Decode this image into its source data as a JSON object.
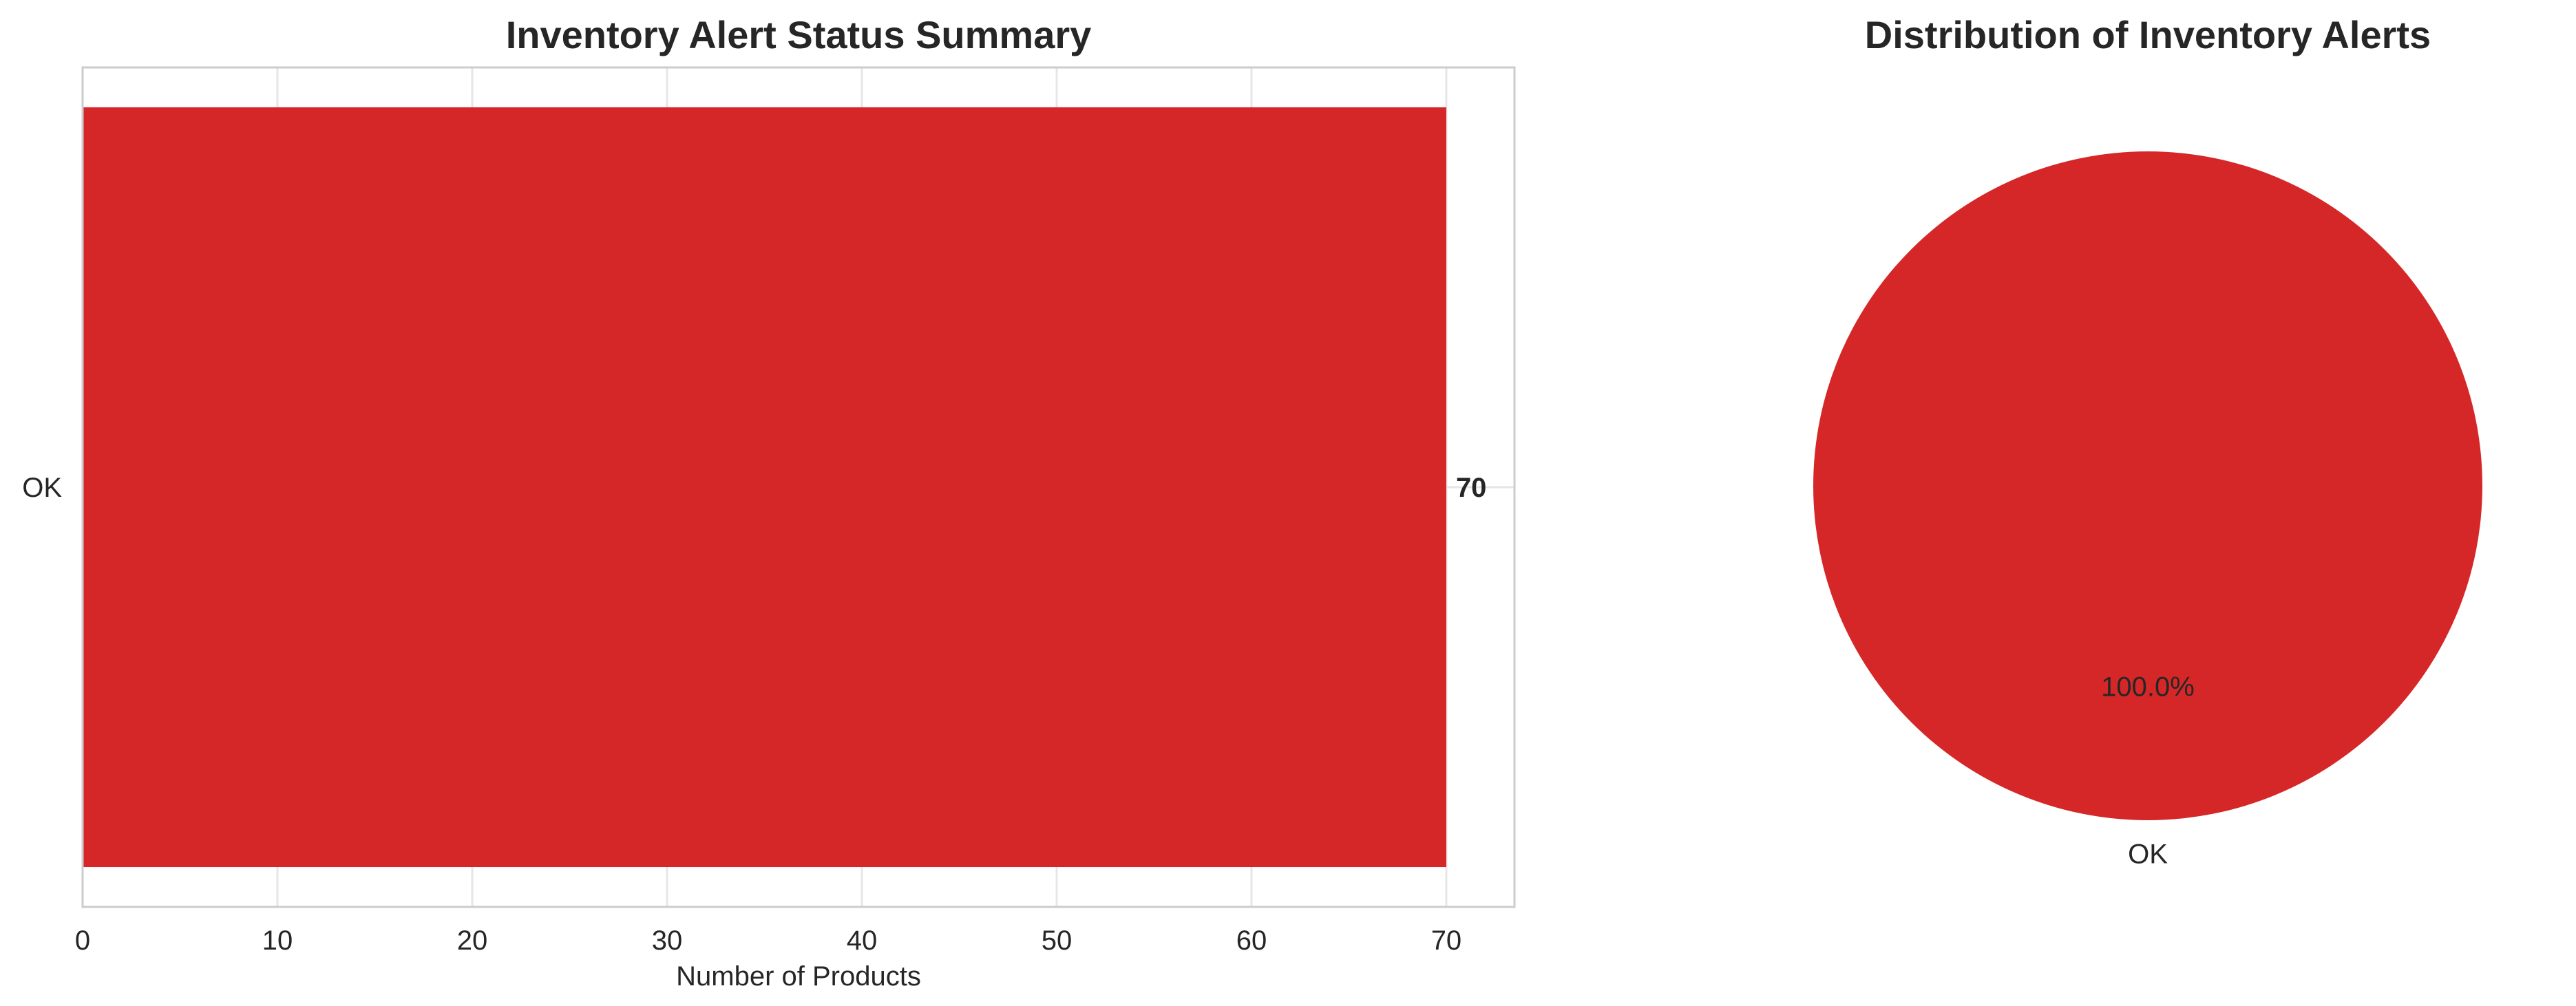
{
  "colors": {
    "bar": "#d62728",
    "grid": "#e6e6e6",
    "axes": "#cccccc",
    "text": "#262626"
  },
  "chart_data": [
    {
      "type": "bar",
      "orientation": "horizontal",
      "title": "Inventory Alert Status Summary",
      "categories": [
        "OK"
      ],
      "values": [
        70
      ],
      "data_labels": [
        "70"
      ],
      "xlabel": "Number of Products",
      "ylabel": "",
      "xlim": [
        0,
        73.5
      ],
      "xticks": [
        0,
        10,
        20,
        30,
        40,
        50,
        60,
        70
      ],
      "grid": true
    },
    {
      "type": "pie",
      "title": "Distribution of Inventory Alerts",
      "labels": [
        "OK"
      ],
      "values": [
        70
      ],
      "percent_labels": [
        "100.0%"
      ]
    }
  ]
}
